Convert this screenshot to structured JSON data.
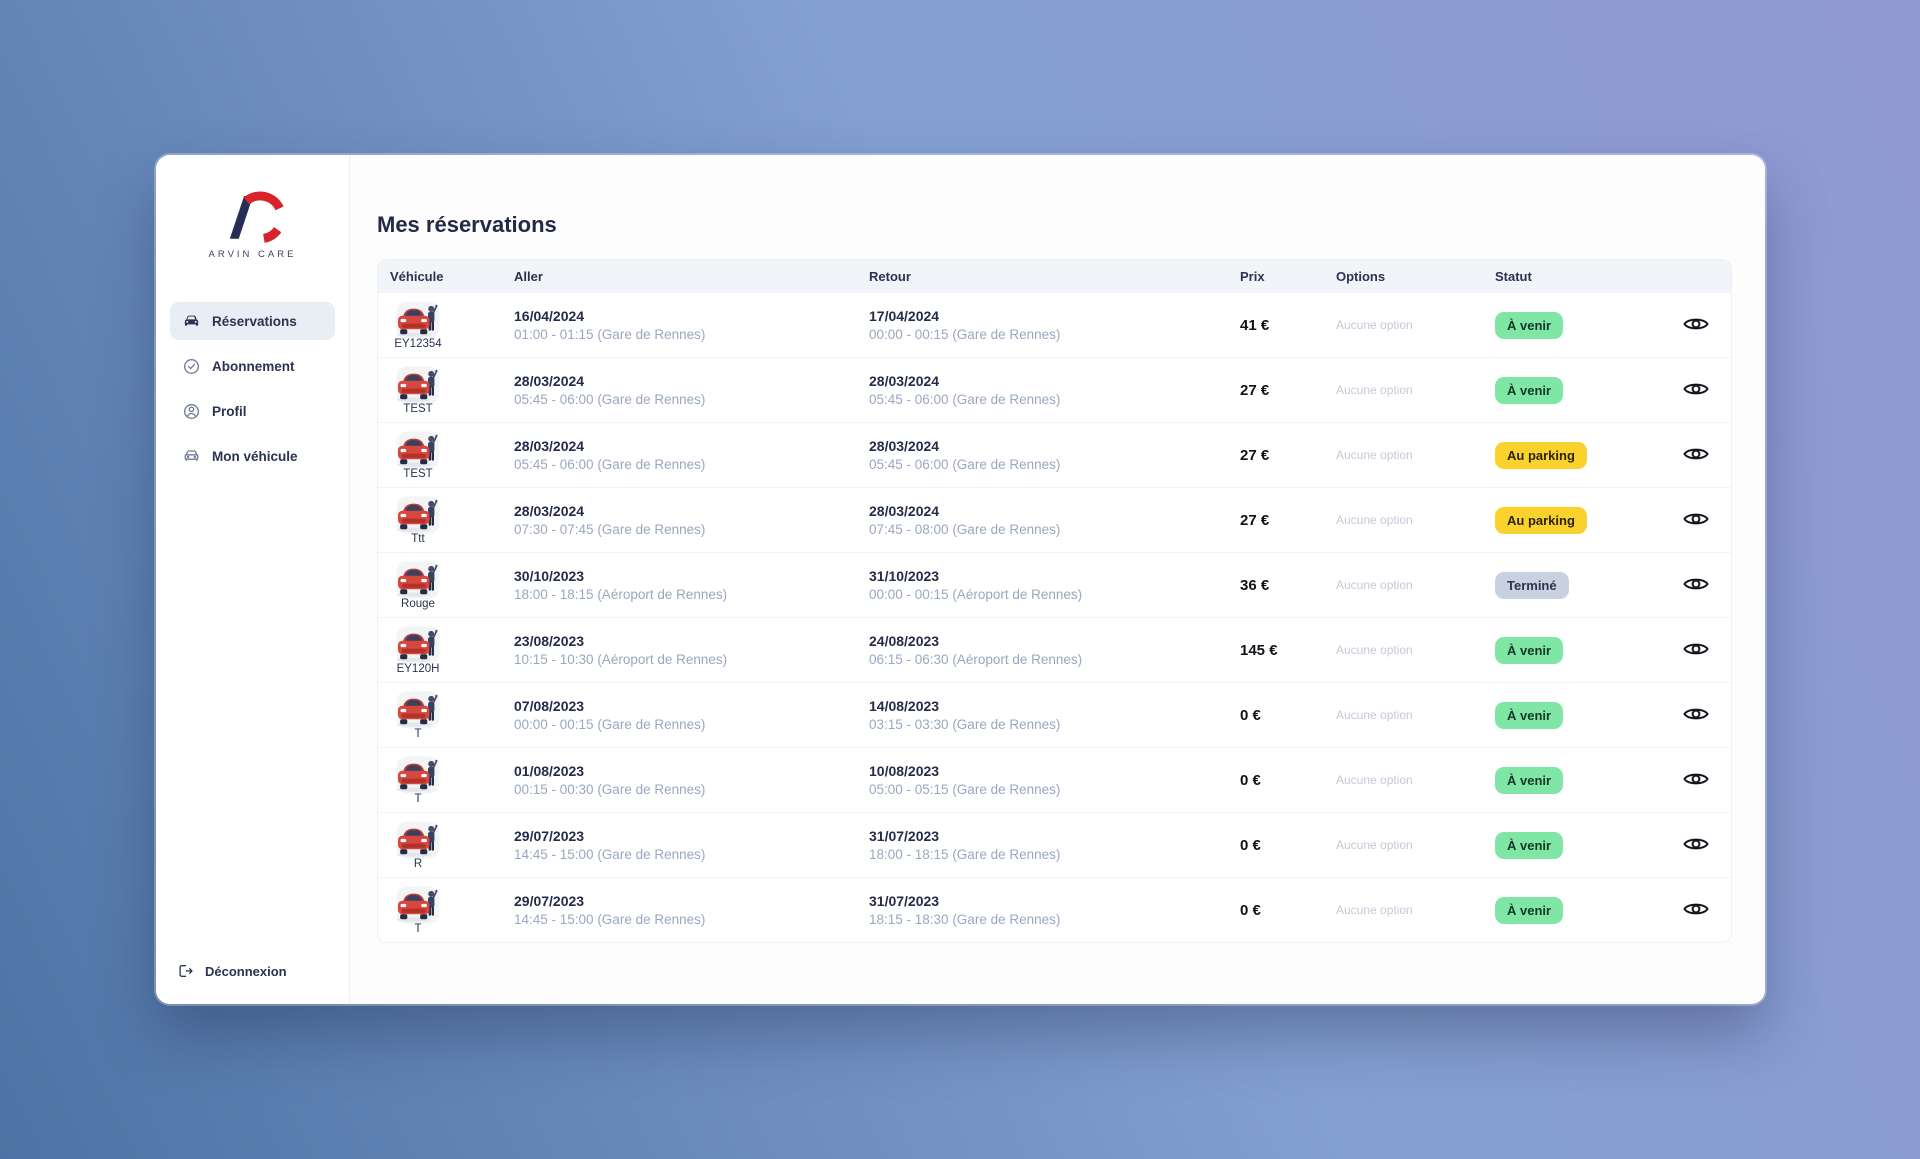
{
  "app": {
    "brand": "ARVIN CARE"
  },
  "sidebar": {
    "items": [
      {
        "id": "reservations",
        "label": "Réservations",
        "icon": "car",
        "active": true
      },
      {
        "id": "abonnement",
        "label": "Abonnement",
        "icon": "check-circle",
        "active": false
      },
      {
        "id": "profil",
        "label": "Profil",
        "icon": "user-circle",
        "active": false
      },
      {
        "id": "mon-vehicule",
        "label": "Mon véhicule",
        "icon": "car-outline",
        "active": false
      }
    ],
    "logout_label": "Déconnexion"
  },
  "main": {
    "title": "Mes réservations",
    "table": {
      "columns": [
        "Véhicule",
        "Aller",
        "Retour",
        "Prix",
        "Options",
        "Statut"
      ],
      "row_icon": "red-car-illustration",
      "action_icon": "eye-icon",
      "rows": [
        {
          "vehicle": "EY12354",
          "aller_date": "16/04/2024",
          "aller_detail": "01:00 - 01:15 (Gare de Rennes)",
          "retour_date": "17/04/2024",
          "retour_detail": "00:00 - 00:15 (Gare de Rennes)",
          "prix": "41 €",
          "options": "Aucune option",
          "statut": "À venir",
          "statut_type": "upcoming"
        },
        {
          "vehicle": "TEST",
          "aller_date": "28/03/2024",
          "aller_detail": "05:45 - 06:00 (Gare de Rennes)",
          "retour_date": "28/03/2024",
          "retour_detail": "05:45 - 06:00 (Gare de Rennes)",
          "prix": "27 €",
          "options": "Aucune option",
          "statut": "À venir",
          "statut_type": "upcoming"
        },
        {
          "vehicle": "TEST",
          "aller_date": "28/03/2024",
          "aller_detail": "05:45 - 06:00 (Gare de Rennes)",
          "retour_date": "28/03/2024",
          "retour_detail": "05:45 - 06:00 (Gare de Rennes)",
          "prix": "27 €",
          "options": "Aucune option",
          "statut": "Au parking",
          "statut_type": "parking"
        },
        {
          "vehicle": "Ttt",
          "aller_date": "28/03/2024",
          "aller_detail": "07:30 - 07:45 (Gare de Rennes)",
          "retour_date": "28/03/2024",
          "retour_detail": "07:45 - 08:00 (Gare de Rennes)",
          "prix": "27 €",
          "options": "Aucune option",
          "statut": "Au parking",
          "statut_type": "parking"
        },
        {
          "vehicle": "Rouge",
          "aller_date": "30/10/2023",
          "aller_detail": "18:00 - 18:15 (Aéroport de Rennes)",
          "retour_date": "31/10/2023",
          "retour_detail": "00:00 - 00:15 (Aéroport de Rennes)",
          "prix": "36 €",
          "options": "Aucune option",
          "statut": "Terminé",
          "statut_type": "done"
        },
        {
          "vehicle": "EY120H",
          "aller_date": "23/08/2023",
          "aller_detail": "10:15 - 10:30 (Aéroport de Rennes)",
          "retour_date": "24/08/2023",
          "retour_detail": "06:15 - 06:30 (Aéroport de Rennes)",
          "prix": "145 €",
          "options": "Aucune option",
          "statut": "À venir",
          "statut_type": "upcoming"
        },
        {
          "vehicle": "T",
          "aller_date": "07/08/2023",
          "aller_detail": "00:00 - 00:15 (Gare de Rennes)",
          "retour_date": "14/08/2023",
          "retour_detail": "03:15 - 03:30 (Gare de Rennes)",
          "prix": "0 €",
          "options": "Aucune option",
          "statut": "À venir",
          "statut_type": "upcoming"
        },
        {
          "vehicle": "T",
          "aller_date": "01/08/2023",
          "aller_detail": "00:15 - 00:30 (Gare de Rennes)",
          "retour_date": "10/08/2023",
          "retour_detail": "05:00 - 05:15 (Gare de Rennes)",
          "prix": "0 €",
          "options": "Aucune option",
          "statut": "À venir",
          "statut_type": "upcoming"
        },
        {
          "vehicle": "R",
          "aller_date": "29/07/2023",
          "aller_detail": "14:45 - 15:00 (Gare de Rennes)",
          "retour_date": "31/07/2023",
          "retour_detail": "18:00 - 18:15 (Gare de Rennes)",
          "prix": "0 €",
          "options": "Aucune option",
          "statut": "À venir",
          "statut_type": "upcoming"
        },
        {
          "vehicle": "T",
          "aller_date": "29/07/2023",
          "aller_detail": "14:45 - 15:00 (Gare de Rennes)",
          "retour_date": "31/07/2023",
          "retour_detail": "18:15 - 18:30 (Gare de Rennes)",
          "prix": "0 €",
          "options": "Aucune option",
          "statut": "À venir",
          "statut_type": "upcoming"
        }
      ]
    }
  },
  "colors": {
    "brand_navy": "#272e55",
    "brand_red": "#d8232a",
    "text_navy": "#2b3352",
    "muted_detail": "#9aa7c0",
    "badge_upcoming_bg": "#80e6a5",
    "badge_parking_bg": "#f9d32b",
    "badge_done_bg": "#c8d1e0"
  }
}
